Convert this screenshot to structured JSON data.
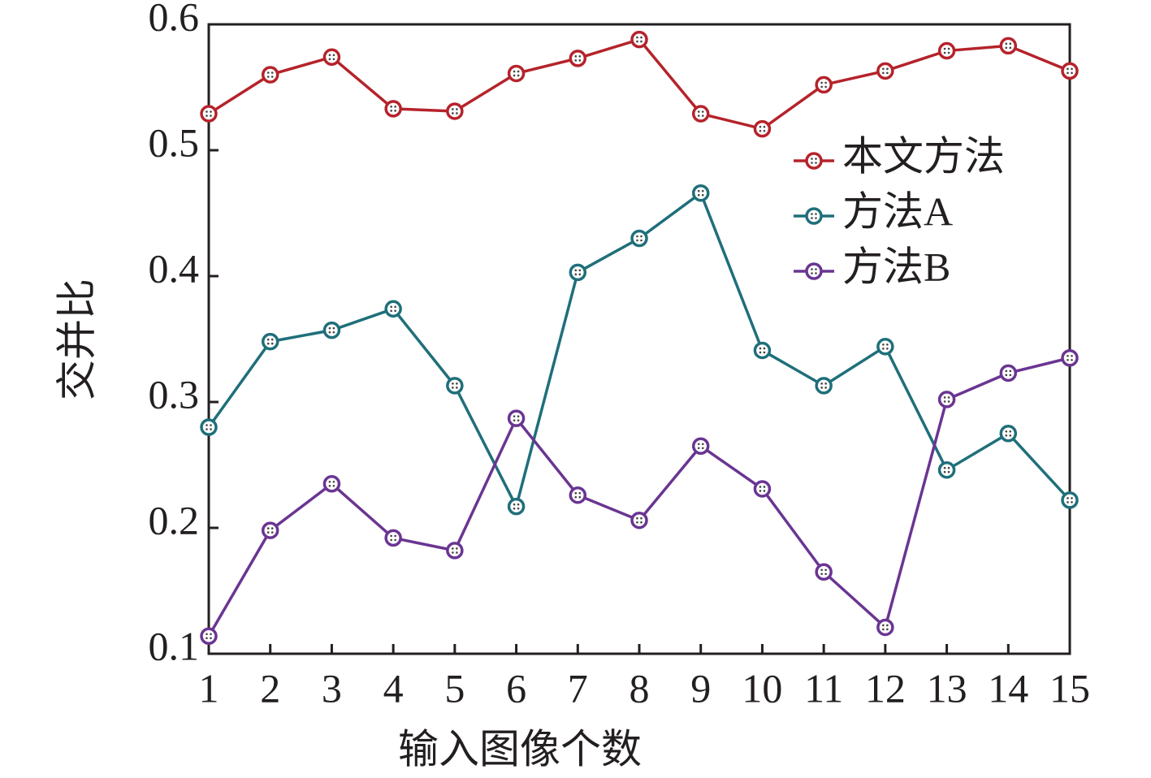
{
  "chart_data": {
    "type": "line",
    "xlabel": "输入图像个数",
    "ylabel": "交并比",
    "x": [
      1,
      2,
      3,
      4,
      5,
      6,
      7,
      8,
      9,
      10,
      11,
      12,
      13,
      14,
      15
    ],
    "xlim": [
      1,
      15
    ],
    "xticks": [
      1,
      2,
      3,
      4,
      5,
      6,
      7,
      8,
      9,
      10,
      11,
      12,
      13,
      14,
      15
    ],
    "ylim": [
      0.1,
      0.6
    ],
    "yticks": [
      0.1,
      0.2,
      0.3,
      0.4,
      0.5,
      0.6
    ],
    "grid": false,
    "legend": "upper right",
    "series": [
      {
        "name": "本文方法",
        "color": "#b5232b",
        "values": [
          0.529,
          0.56,
          0.574,
          0.533,
          0.531,
          0.561,
          0.573,
          0.588,
          0.529,
          0.517,
          0.552,
          0.563,
          0.579,
          0.583,
          0.563
        ]
      },
      {
        "name": "方法A",
        "color": "#1f6f7a",
        "values": [
          0.28,
          0.348,
          0.357,
          0.374,
          0.313,
          0.217,
          0.403,
          0.43,
          0.466,
          0.341,
          0.313,
          0.344,
          0.246,
          0.275,
          0.222
        ]
      },
      {
        "name": "方法B",
        "color": "#6a3592",
        "values": [
          0.114,
          0.198,
          0.235,
          0.192,
          0.182,
          0.287,
          0.226,
          0.206,
          0.265,
          0.231,
          0.165,
          0.121,
          0.302,
          0.323,
          0.335
        ]
      }
    ]
  }
}
